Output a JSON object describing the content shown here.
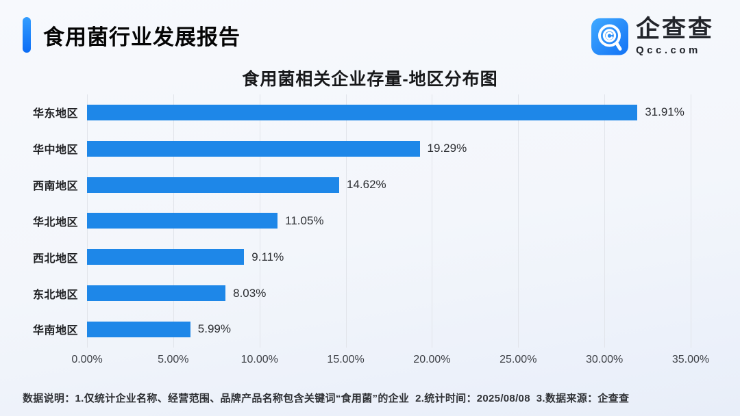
{
  "header": {
    "title": "食用菌行业发展报告",
    "logo": {
      "name": "企查查",
      "domain": "Qcc.com"
    }
  },
  "chart_data": {
    "type": "bar",
    "orientation": "horizontal",
    "title": "食用菌相关企业存量-地区分布图",
    "categories": [
      "华东地区",
      "华中地区",
      "西南地区",
      "华北地区",
      "西北地区",
      "东北地区",
      "华南地区"
    ],
    "values": [
      31.91,
      19.29,
      14.62,
      11.05,
      9.11,
      8.03,
      5.99
    ],
    "value_labels": [
      "31.91%",
      "19.29%",
      "14.62%",
      "11.05%",
      "9.11%",
      "8.03%",
      "5.99%"
    ],
    "x_ticks": [
      "0.00%",
      "5.00%",
      "10.00%",
      "15.00%",
      "20.00%",
      "25.00%",
      "30.00%",
      "35.00%"
    ],
    "xlim": [
      0,
      35
    ],
    "grid": true,
    "legend": false,
    "bar_color": "#1e87e8"
  },
  "footer": {
    "note": "数据说明：1.仅统计企业名称、经营范围、品牌产品名称包含关键词“食用菌”的企业  2.统计时间：2025/08/08  3.数据来源：企查查"
  },
  "colors": {
    "bar": "#1e87e8",
    "accent_gradient_top": "#339dff",
    "accent_gradient_bottom": "#0b6cf5",
    "gridline": "#e1e4ea",
    "background_top": "#f7f9fd",
    "background_bottom": "#e8eef9"
  }
}
